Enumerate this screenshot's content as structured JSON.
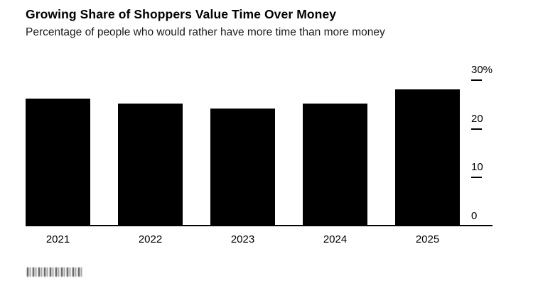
{
  "header": {
    "title": "Growing Share of Shoppers Value Time Over Money",
    "subtitle": "Percentage of people who would rather have more time than more money"
  },
  "footer": {
    "watermark": "blurred-source-logo"
  },
  "chart_data": {
    "type": "bar",
    "title": "Growing Share of Shoppers Value Time Over Money",
    "subtitle": "Percentage of people who would rather have more time than more money",
    "categories": [
      "2021",
      "2022",
      "2023",
      "2024",
      "2025"
    ],
    "values": [
      26,
      25,
      24,
      25,
      28
    ],
    "xlabel": "",
    "ylabel": "",
    "ylim": [
      0,
      30
    ],
    "yticks": [
      0,
      10,
      20,
      30
    ],
    "ytick_labels": [
      "0",
      "10",
      "20",
      "30%"
    ],
    "y_axis_side": "right",
    "grid": false,
    "legend": "none",
    "bar_color": "#000000",
    "background_color": "#ffffff"
  }
}
